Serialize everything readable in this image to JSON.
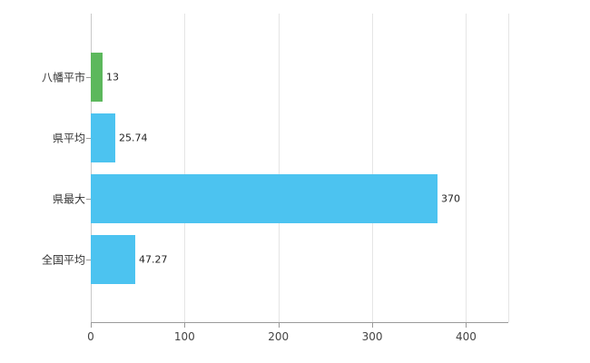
{
  "chart_data": {
    "type": "bar",
    "orientation": "horizontal",
    "title": "",
    "xlabel": "",
    "ylabel": "",
    "categories": [
      "八幡平市",
      "県平均",
      "県最大",
      "全国平均"
    ],
    "values": [
      13,
      25.74,
      370,
      47.27
    ],
    "value_labels": [
      "13",
      "25.74",
      "370",
      "47.27"
    ],
    "bar_colors": [
      "#5cb85c",
      "#4cc3f0",
      "#4cc3f0",
      "#4cc3f0"
    ],
    "xticks": [
      0,
      100,
      200,
      300,
      400
    ],
    "xtick_labels": [
      "0",
      "100",
      "200",
      "300",
      "400"
    ],
    "xlim": [
      0,
      445
    ],
    "grid": true,
    "legend": null
  },
  "colors": {
    "background": "#ffffff",
    "grid": "#e5e5e5",
    "axis": "#9a9a9a",
    "tick_text": "#444444",
    "category_text": "#333333",
    "value_text": "#222222"
  }
}
